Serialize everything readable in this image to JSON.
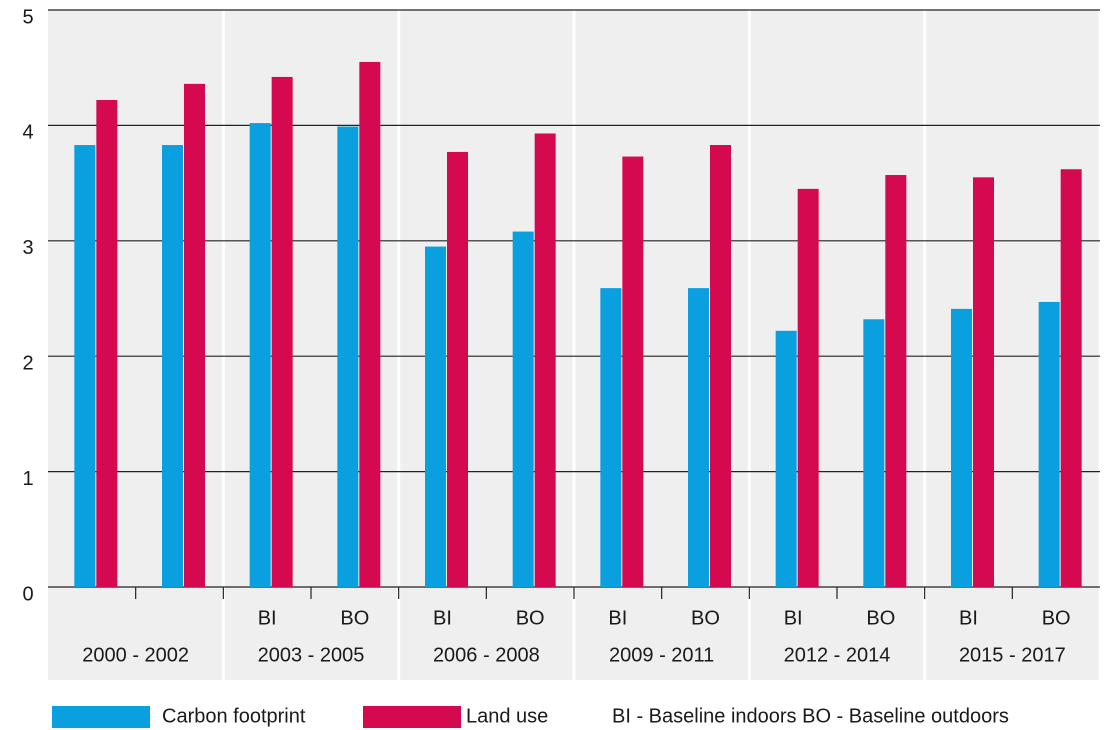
{
  "chart_data": {
    "type": "bar",
    "groups": [
      "2000 - 2002",
      "2003 - 2005",
      "2006 - 2008",
      "2009 - 2011",
      "2012 - 2014",
      "2015 - 2017"
    ],
    "categories": [
      null,
      null,
      "BI",
      "BO",
      "BI",
      "BO",
      "BI",
      "BO",
      "BI",
      "BO",
      "BI",
      "BO"
    ],
    "series": [
      {
        "name": "Carbon footprint",
        "color": "#0aa0e0",
        "values": [
          3.83,
          3.83,
          4.02,
          3.99,
          2.95,
          3.08,
          2.59,
          2.59,
          2.22,
          2.32,
          2.41,
          2.47
        ]
      },
      {
        "name": "Land use",
        "color": "#d4094f",
        "values": [
          4.22,
          4.36,
          4.42,
          4.55,
          3.77,
          3.93,
          3.73,
          3.83,
          3.45,
          3.57,
          3.55,
          3.62
        ]
      }
    ],
    "note": "BI - Baseline indoors  BO - Baseline outdoors",
    "ylim": [
      0,
      5
    ],
    "yticks": [
      0,
      1,
      2,
      3,
      4,
      5
    ],
    "grid": true
  }
}
